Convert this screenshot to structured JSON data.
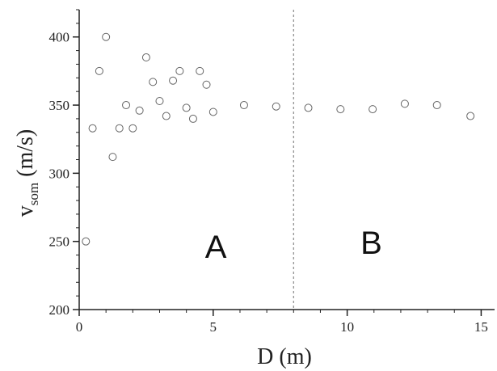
{
  "chart_data": {
    "type": "scatter",
    "title": "",
    "xlabel": "D (m)",
    "ylabel_main": "v",
    "ylabel_sub": "som",
    "ylabel_unit": " (m/s)",
    "xlim": [
      0,
      15.5
    ],
    "ylim": [
      200,
      420
    ],
    "xticks": [
      0,
      5,
      10,
      15
    ],
    "yticks": [
      200,
      250,
      300,
      350,
      400
    ],
    "xtick_labels": [
      "0",
      "5",
      "10",
      "15"
    ],
    "ytick_labels": [
      "200",
      "250",
      "300",
      "350",
      "400"
    ],
    "x_minor_step": 1,
    "y_minor_step": 10,
    "grid": false,
    "marker": "open-circle",
    "divider": {
      "x": 8,
      "style": "dotted"
    },
    "region_labels": [
      {
        "text": "A",
        "x": 5.1,
        "y": 238
      },
      {
        "text": "B",
        "x": 10.9,
        "y": 241
      }
    ],
    "points": [
      {
        "x": 0.25,
        "y": 250
      },
      {
        "x": 0.5,
        "y": 333
      },
      {
        "x": 0.75,
        "y": 375
      },
      {
        "x": 1.0,
        "y": 400
      },
      {
        "x": 1.25,
        "y": 312
      },
      {
        "x": 1.5,
        "y": 333
      },
      {
        "x": 1.75,
        "y": 350
      },
      {
        "x": 2.0,
        "y": 333
      },
      {
        "x": 2.25,
        "y": 346
      },
      {
        "x": 2.5,
        "y": 385
      },
      {
        "x": 2.75,
        "y": 367
      },
      {
        "x": 3.0,
        "y": 353
      },
      {
        "x": 3.25,
        "y": 342
      },
      {
        "x": 3.5,
        "y": 368
      },
      {
        "x": 3.75,
        "y": 375
      },
      {
        "x": 4.0,
        "y": 348
      },
      {
        "x": 4.25,
        "y": 340
      },
      {
        "x": 4.5,
        "y": 375
      },
      {
        "x": 4.75,
        "y": 365
      },
      {
        "x": 5.0,
        "y": 345
      },
      {
        "x": 6.15,
        "y": 350
      },
      {
        "x": 7.35,
        "y": 349
      },
      {
        "x": 8.55,
        "y": 348
      },
      {
        "x": 9.75,
        "y": 347
      },
      {
        "x": 10.95,
        "y": 347
      },
      {
        "x": 12.15,
        "y": 351
      },
      {
        "x": 13.35,
        "y": 350
      },
      {
        "x": 14.6,
        "y": 342
      }
    ]
  },
  "style": {
    "axis_color": "#222222",
    "marker_color": "#666666",
    "divider_color": "#888888"
  }
}
